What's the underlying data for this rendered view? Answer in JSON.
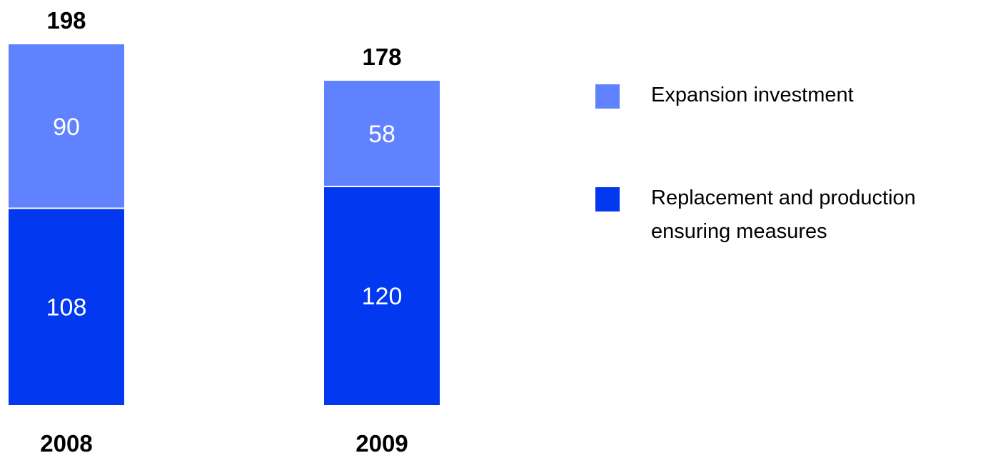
{
  "colors": {
    "expansion": "#6182FF",
    "replacement": "#0238F0",
    "segment_label": "#FFFFFF",
    "total_label": "#000000",
    "divider": "#FFFFFF"
  },
  "legend": {
    "items": [
      {
        "series": "expansion",
        "label": "Expansion investment"
      },
      {
        "series": "replacement",
        "label": "Replacement and production\nensuring measures"
      }
    ]
  },
  "chart_data": {
    "type": "bar",
    "stacked": true,
    "categories": [
      "2008",
      "2009"
    ],
    "series": [
      {
        "key": "replacement",
        "name": "Replacement and production ensuring measures",
        "values": [
          108,
          120
        ]
      },
      {
        "key": "expansion",
        "name": "Expansion investment",
        "values": [
          90,
          58
        ]
      }
    ],
    "totals": [
      198,
      178
    ],
    "title": "",
    "xlabel": "",
    "ylabel": "",
    "ylim": [
      0,
      198
    ],
    "grid": false,
    "legend_position": "right"
  }
}
